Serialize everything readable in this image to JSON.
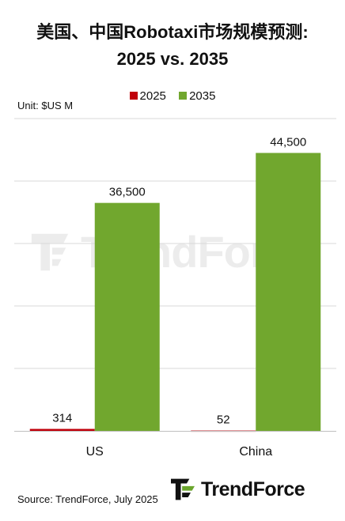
{
  "brand": "TrendForce",
  "source": "Source: TrendForce, July 2025",
  "colors": {
    "s2025": "#c0000b",
    "s2035": "#71a72e",
    "grid": "#d9d9d9"
  },
  "chart_data": {
    "type": "bar",
    "title_line1": "美国、中国Robotaxi市场规模预测:",
    "title_line2": "2025 vs. 2035",
    "unit_label": "Unit: $US M",
    "categories": [
      "US",
      "China"
    ],
    "series": [
      {
        "name": "2025",
        "values": [
          314,
          52
        ],
        "labels": [
          "314",
          "52"
        ]
      },
      {
        "name": "2035",
        "values": [
          36500,
          44500
        ],
        "labels": [
          "36,500",
          "44,500"
        ]
      }
    ],
    "ylim": [
      0,
      50000
    ],
    "ygrid_step": 10000,
    "grid": true,
    "y_tick_labels_shown": false,
    "legend_position": "top-center"
  }
}
